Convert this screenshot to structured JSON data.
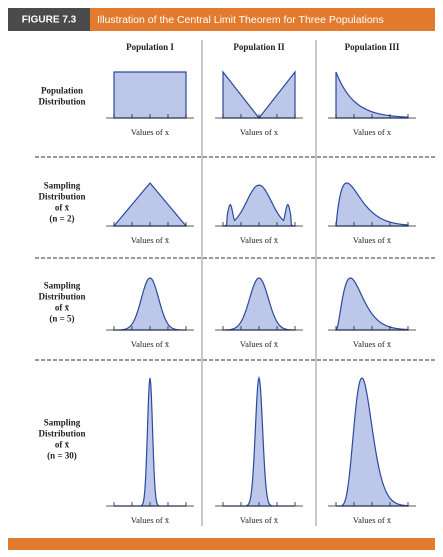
{
  "figure": {
    "label": "FIGURE 7.3",
    "title": "Illustration of the Central Limit Theorem for Three Populations"
  },
  "columns": [
    "Population I",
    "Population II",
    "Population III"
  ],
  "rows": [
    {
      "label": [
        "Population",
        "Distribution"
      ],
      "axis_labels": [
        "Values of x",
        "Values of x",
        "Values of x"
      ]
    },
    {
      "label": [
        "Sampling",
        "Distribution",
        "of x̄",
        "(n = 2)"
      ],
      "axis_labels": [
        "Values of x̄",
        "Values of x̄",
        "Values of x̄"
      ]
    },
    {
      "label": [
        "Sampling",
        "Distribution",
        "of x̄",
        "(n = 5)"
      ],
      "axis_labels": [
        "Values of x̄",
        "Values of x̄",
        "Values of x̄"
      ]
    },
    {
      "label": [
        "Sampling",
        "Distribution",
        "of x̄",
        "(n = 30)"
      ],
      "axis_labels": [
        "Values of x̄",
        "Values of x̄",
        "Values of x̄"
      ]
    }
  ]
}
